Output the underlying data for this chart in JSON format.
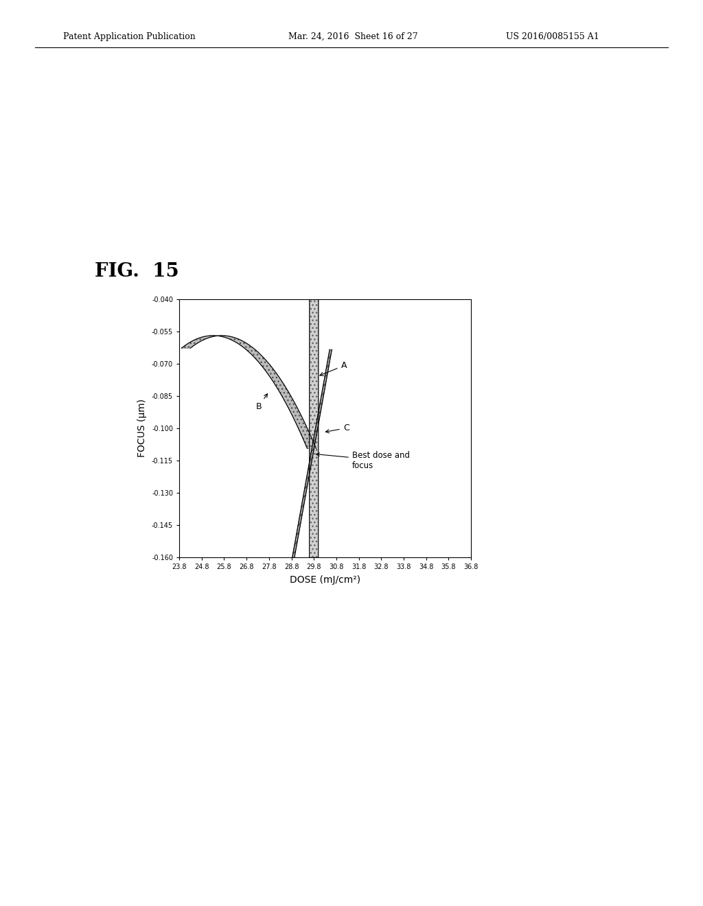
{
  "title": "FIG.  15",
  "xlabel": "DOSE (mJ/cm²)",
  "ylabel": "FOCUS (μm)",
  "xlim": [
    23.8,
    36.8
  ],
  "ylim": [
    -0.16,
    -0.04
  ],
  "yticks": [
    -0.16,
    -0.145,
    -0.13,
    -0.115,
    -0.1,
    -0.085,
    -0.07,
    -0.055,
    -0.04
  ],
  "xticks": [
    23.8,
    24.8,
    25.8,
    26.8,
    27.8,
    28.8,
    29.8,
    30.8,
    31.8,
    32.8,
    33.8,
    34.8,
    35.8,
    36.8
  ],
  "background_color": "#ffffff",
  "annotation_text": "Best dose and\nfocus",
  "fig_label": "FIG.  15",
  "header_left": "Patent Application Publication",
  "header_mid": "Mar. 24, 2016  Sheet 16 of 27",
  "header_right": "US 2016/0085155 A1"
}
